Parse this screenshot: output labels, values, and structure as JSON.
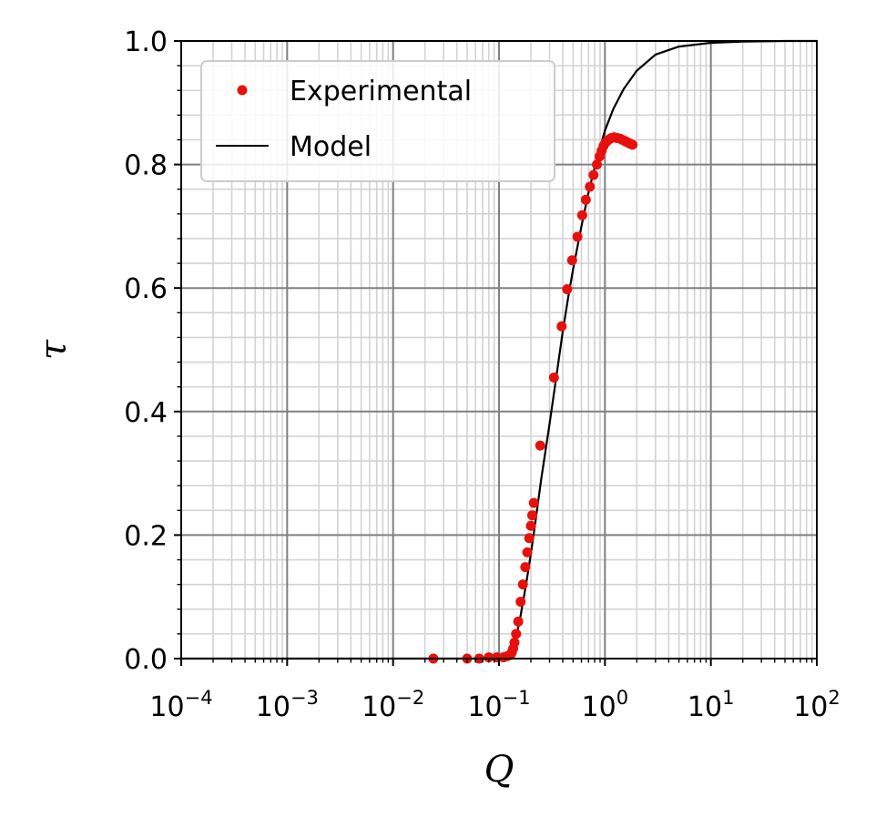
{
  "chart_data": {
    "type": "scatter",
    "title": "",
    "xlabel": "Q",
    "ylabel": "τ",
    "xscale": "log",
    "xlim": [
      0.0001,
      100
    ],
    "ylim": [
      0.0,
      1.0
    ],
    "grid": "major and minor",
    "legend_position": "top-left",
    "x_ticks": [
      {
        "base": "10",
        "exp": "−4"
      },
      {
        "base": "10",
        "exp": "−3"
      },
      {
        "base": "10",
        "exp": "−2"
      },
      {
        "base": "10",
        "exp": "−1"
      },
      {
        "base": "10",
        "exp": "0"
      },
      {
        "base": "10",
        "exp": "1"
      },
      {
        "base": "10",
        "exp": "2"
      }
    ],
    "y_ticks": [
      "0.0",
      "0.2",
      "0.4",
      "0.6",
      "0.8",
      "1.0"
    ],
    "colors": {
      "experimental": "#e8100c",
      "model": "#000000",
      "major_grid": "#808080",
      "minor_grid": "#d3d3d3"
    },
    "series": [
      {
        "name": "Experimental",
        "kind": "points",
        "points": [
          [
            0.024,
            0.0
          ],
          [
            0.05,
            0.0
          ],
          [
            0.065,
            0.0
          ],
          [
            0.08,
            0.002
          ],
          [
            0.095,
            0.002
          ],
          [
            0.11,
            0.002
          ],
          [
            0.12,
            0.004
          ],
          [
            0.128,
            0.006
          ],
          [
            0.132,
            0.01
          ],
          [
            0.136,
            0.016
          ],
          [
            0.14,
            0.026
          ],
          [
            0.145,
            0.04
          ],
          [
            0.152,
            0.06
          ],
          [
            0.16,
            0.092
          ],
          [
            0.168,
            0.12
          ],
          [
            0.177,
            0.148
          ],
          [
            0.185,
            0.172
          ],
          [
            0.193,
            0.195
          ],
          [
            0.2,
            0.215
          ],
          [
            0.206,
            0.232
          ],
          [
            0.213,
            0.252
          ],
          [
            0.245,
            0.345
          ],
          [
            0.33,
            0.455
          ],
          [
            0.39,
            0.538
          ],
          [
            0.44,
            0.598
          ],
          [
            0.49,
            0.645
          ],
          [
            0.55,
            0.683
          ],
          [
            0.61,
            0.718
          ],
          [
            0.66,
            0.743
          ],
          [
            0.72,
            0.764
          ],
          [
            0.78,
            0.783
          ],
          [
            0.84,
            0.8
          ],
          [
            0.89,
            0.813
          ],
          [
            0.93,
            0.822
          ],
          [
            0.97,
            0.83
          ],
          [
            1.02,
            0.836
          ],
          [
            1.08,
            0.84
          ],
          [
            1.15,
            0.843
          ],
          [
            1.22,
            0.844
          ],
          [
            1.3,
            0.843
          ],
          [
            1.38,
            0.842
          ],
          [
            1.46,
            0.84
          ],
          [
            1.55,
            0.838
          ],
          [
            1.63,
            0.836
          ],
          [
            1.72,
            0.834
          ],
          [
            1.82,
            0.832
          ]
        ]
      },
      {
        "name": "Model",
        "kind": "line",
        "points": [
          [
            0.0001,
            0.0
          ],
          [
            0.05,
            0.0
          ],
          [
            0.1,
            0.0
          ],
          [
            0.12,
            0.0
          ],
          [
            0.13,
            0.0
          ],
          [
            0.14,
            0.02
          ],
          [
            0.16,
            0.07
          ],
          [
            0.18,
            0.12
          ],
          [
            0.2,
            0.17
          ],
          [
            0.22,
            0.22
          ],
          [
            0.25,
            0.29
          ],
          [
            0.3,
            0.38
          ],
          [
            0.35,
            0.46
          ],
          [
            0.4,
            0.53
          ],
          [
            0.45,
            0.585
          ],
          [
            0.5,
            0.63
          ],
          [
            0.6,
            0.7
          ],
          [
            0.7,
            0.755
          ],
          [
            0.8,
            0.795
          ],
          [
            0.9,
            0.828
          ],
          [
            1.0,
            0.855
          ],
          [
            1.2,
            0.89
          ],
          [
            1.5,
            0.922
          ],
          [
            2.0,
            0.952
          ],
          [
            3.0,
            0.978
          ],
          [
            5.0,
            0.991
          ],
          [
            10.0,
            0.997
          ],
          [
            20.0,
            0.999
          ],
          [
            50.0,
            1.0
          ],
          [
            100.0,
            1.0
          ]
        ]
      }
    ]
  }
}
